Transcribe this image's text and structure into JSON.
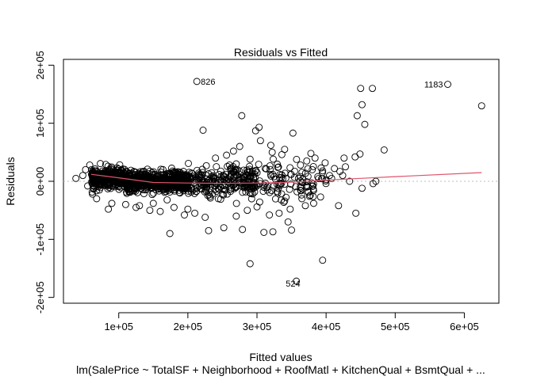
{
  "chart_data": {
    "type": "scatter",
    "title": "Residuals vs Fitted",
    "xlabel": "Fitted values",
    "ylabel": "Residuals",
    "subtitle": "lm(SalePrice ~ TotalSF + Neighborhood + RoofMatl + KitchenQual + BsmtQual + ...",
    "xlim": [
      20000,
      650000
    ],
    "ylim": [
      -210000,
      210000
    ],
    "x_ticks": [
      {
        "value": 100000,
        "label": "1e+05"
      },
      {
        "value": 200000,
        "label": "2e+05"
      },
      {
        "value": 300000,
        "label": "3e+05"
      },
      {
        "value": 400000,
        "label": "4e+05"
      },
      {
        "value": 500000,
        "label": "5e+05"
      },
      {
        "value": 600000,
        "label": "6e+05"
      }
    ],
    "y_ticks": [
      {
        "value": -200000,
        "label": "-2e+05"
      },
      {
        "value": -100000,
        "label": "-1e+05"
      },
      {
        "value": 0,
        "label": "0e+00"
      },
      {
        "value": 100000,
        "label": "1e+05"
      },
      {
        "value": 200000,
        "label": "2e+05"
      }
    ],
    "reference_line": 0,
    "smoother_color": "#DF536B",
    "outlier_points": [
      {
        "label": "826",
        "x": 213000,
        "y": 172000
      },
      {
        "label": "1183",
        "x": 576000,
        "y": 167000
      },
      {
        "label": "524",
        "x": 357000,
        "y": -172000
      }
    ],
    "points": [
      [
        625000,
        130000
      ],
      [
        450000,
        160000
      ],
      [
        467000,
        160000
      ],
      [
        452000,
        132000
      ],
      [
        445000,
        113000
      ],
      [
        456000,
        98000
      ],
      [
        484000,
        54000
      ],
      [
        449000,
        47000
      ],
      [
        442000,
        42000
      ],
      [
        426000,
        40000
      ],
      [
        428000,
        25000
      ],
      [
        412000,
        22000
      ],
      [
        420000,
        17000
      ],
      [
        443000,
        -55000
      ],
      [
        395000,
        -136000
      ],
      [
        290000,
        -142000
      ],
      [
        310000,
        -88000
      ],
      [
        323000,
        -87000
      ],
      [
        350000,
        -84000
      ],
      [
        345000,
        -70000
      ],
      [
        318000,
        -58000
      ],
      [
        332000,
        -55000
      ],
      [
        348000,
        -48000
      ],
      [
        370000,
        -42000
      ],
      [
        382000,
        -38000
      ],
      [
        418000,
        -42000
      ],
      [
        392000,
        -27000
      ],
      [
        365000,
        -30000
      ],
      [
        340000,
        -34000
      ],
      [
        300000,
        -44000
      ],
      [
        279000,
        -83000
      ],
      [
        252000,
        -80000
      ],
      [
        270000,
        -60000
      ],
      [
        286000,
        -50000
      ],
      [
        230000,
        -85000
      ],
      [
        174000,
        -90000
      ],
      [
        225000,
        -62000
      ],
      [
        210000,
        -55000
      ],
      [
        195000,
        -58000
      ],
      [
        160000,
        -52000
      ],
      [
        222000,
        88000
      ],
      [
        278000,
        113000
      ],
      [
        298000,
        87000
      ],
      [
        303000,
        93000
      ],
      [
        305000,
        70000
      ],
      [
        320000,
        62000
      ],
      [
        352000,
        83000
      ],
      [
        340000,
        55000
      ],
      [
        378000,
        48000
      ],
      [
        384000,
        40000
      ],
      [
        372000,
        35000
      ],
      [
        363000,
        28000
      ],
      [
        322000,
        50000
      ],
      [
        336000,
        46000
      ],
      [
        266000,
        52000
      ],
      [
        275000,
        60000
      ],
      [
        256000,
        45000
      ],
      [
        240000,
        40000
      ],
      [
        290000,
        38000
      ],
      [
        270000,
        30000
      ],
      [
        405000,
        10000
      ],
      [
        434000,
        0
      ],
      [
        452000,
        -12000
      ],
      [
        472000,
        0
      ],
      [
        468000,
        -4000
      ],
      [
        424000,
        10000
      ],
      [
        400000,
        3000
      ],
      [
        388000,
        8000
      ],
      [
        372000,
        -10000
      ],
      [
        358000,
        -18000
      ],
      [
        330000,
        -20000
      ],
      [
        315000,
        -15000
      ],
      [
        380000,
        20000
      ],
      [
        395000,
        18000
      ],
      [
        408000,
        5000
      ],
      [
        360000,
        5000
      ],
      [
        340000,
        -5000
      ],
      [
        325000,
        8000
      ],
      [
        312000,
        22000
      ],
      [
        300000,
        -8000
      ],
      [
        38000,
        5000
      ],
      [
        48000,
        10000
      ],
      [
        55000,
        -8000
      ],
      [
        62000,
        -22000
      ],
      [
        65000,
        18000
      ],
      [
        70000,
        12000
      ],
      [
        72000,
        -15000
      ],
      [
        58000,
        28000
      ],
      [
        52000,
        20000
      ],
      [
        68000,
        -30000
      ],
      [
        85000,
        -48000
      ],
      [
        90000,
        -38000
      ],
      [
        110000,
        -40000
      ],
      [
        125000,
        -45000
      ],
      [
        130000,
        -42000
      ],
      [
        145000,
        -50000
      ],
      [
        150000,
        -38000
      ],
      [
        170000,
        -32000
      ],
      [
        180000,
        -45000
      ],
      [
        200000,
        -48000
      ]
    ]
  }
}
